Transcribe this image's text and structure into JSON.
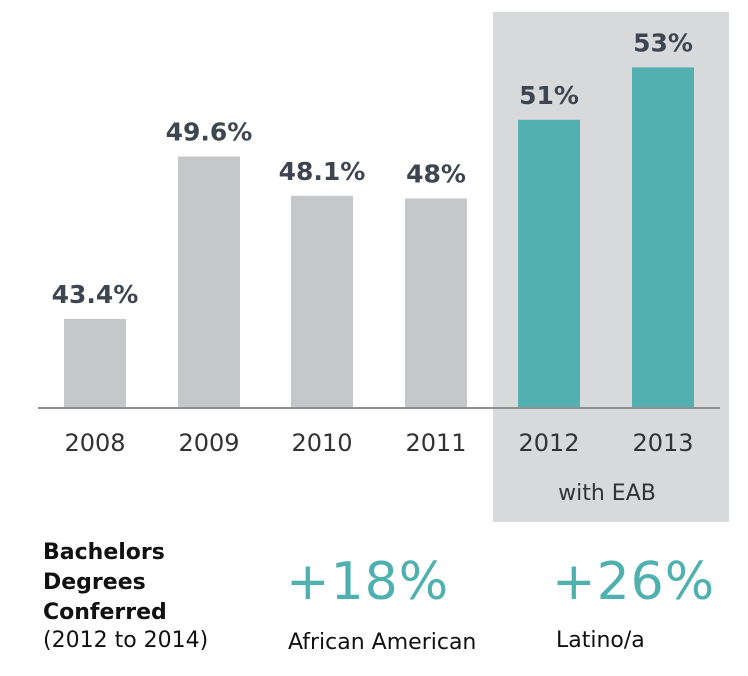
{
  "chart_data": {
    "type": "bar",
    "categories": [
      "2008",
      "2009",
      "2010",
      "2011",
      "2012",
      "2013"
    ],
    "values": [
      43.4,
      49.6,
      48.1,
      48,
      51,
      53
    ],
    "data_labels": [
      "43.4%",
      "49.6%",
      "48.1%",
      "48%",
      "51%",
      "53%"
    ],
    "highlight_label": "with EAB",
    "colors": {
      "base": "#c6c7c9",
      "highlight": "#52b0b0",
      "highlight_bg": "#d8d9db",
      "label": "#3d4550",
      "axis": "#8f8f8f"
    },
    "highlighted_categories": [
      "2012",
      "2013"
    ]
  },
  "footer": {
    "title_lines": [
      "Bachelors",
      "Degrees",
      "Conferred"
    ],
    "subtitle": "(2012 to 2014)",
    "stats": [
      {
        "value": "+18%",
        "label": "African American"
      },
      {
        "value": "+26%",
        "label": "Latino/a"
      }
    ]
  }
}
